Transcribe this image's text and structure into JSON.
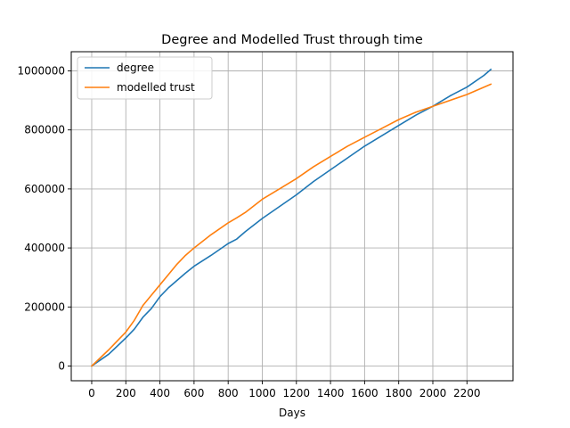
{
  "chart_data": {
    "type": "line",
    "title": "Degree and Modelled Trust through time",
    "xlabel": "Days",
    "ylabel": "",
    "xlim": [
      -120,
      2470
    ],
    "ylim": [
      -50000,
      1065000
    ],
    "xticks": [
      0,
      200,
      400,
      600,
      800,
      1000,
      1200,
      1400,
      1600,
      1800,
      2000,
      2200
    ],
    "yticks": [
      0,
      200000,
      400000,
      600000,
      800000,
      1000000
    ],
    "grid": true,
    "legend_position": "top-left",
    "series": [
      {
        "name": "degree",
        "color": "#1f77b4",
        "x": [
          0,
          100,
          200,
          250,
          300,
          350,
          400,
          450,
          500,
          550,
          600,
          700,
          800,
          850,
          900,
          1000,
          1100,
          1200,
          1300,
          1400,
          1500,
          1600,
          1700,
          1800,
          1900,
          2000,
          2100,
          2200,
          2300,
          2340
        ],
        "values": [
          0,
          40000,
          95000,
          125000,
          165000,
          195000,
          235000,
          265000,
          290000,
          315000,
          338000,
          375000,
          415000,
          430000,
          455000,
          500000,
          540000,
          580000,
          625000,
          665000,
          705000,
          745000,
          780000,
          815000,
          850000,
          880000,
          915000,
          945000,
          985000,
          1005000
        ]
      },
      {
        "name": "modelled trust",
        "color": "#ff7f0e",
        "x": [
          0,
          100,
          200,
          250,
          300,
          350,
          400,
          450,
          500,
          550,
          600,
          700,
          800,
          850,
          900,
          1000,
          1100,
          1200,
          1300,
          1400,
          1500,
          1600,
          1700,
          1800,
          1900,
          2000,
          2100,
          2200,
          2300,
          2340
        ],
        "values": [
          0,
          55000,
          115000,
          155000,
          205000,
          240000,
          275000,
          310000,
          345000,
          375000,
          400000,
          445000,
          485000,
          502000,
          520000,
          565000,
          600000,
          635000,
          675000,
          710000,
          745000,
          775000,
          805000,
          835000,
          860000,
          880000,
          900000,
          920000,
          945000,
          955000
        ]
      }
    ]
  }
}
